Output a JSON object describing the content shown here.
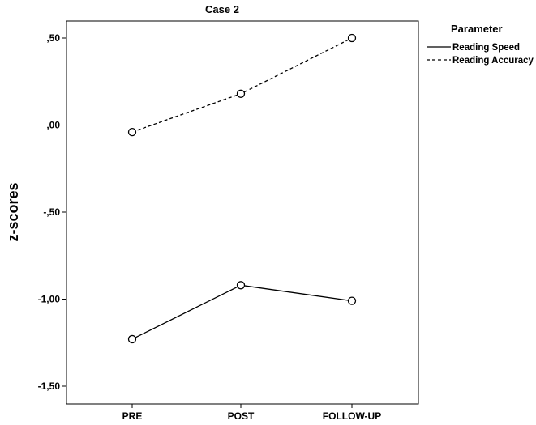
{
  "chart_data": {
    "type": "line",
    "title": "Case 2",
    "ylabel": "z-scores",
    "xlabel": "",
    "categories": [
      "PRE",
      "POST",
      "FOLLOW-UP"
    ],
    "ylim": [
      -1.6,
      0.6
    ],
    "yticks": [
      0.5,
      0.0,
      -0.5,
      -1.0,
      -1.5
    ],
    "ytick_labels": [
      ",50",
      ",00",
      "-,50",
      "-1,00",
      "-1,50"
    ],
    "grid": false,
    "legend": {
      "title": "Parameter",
      "placement": "right"
    },
    "series": [
      {
        "name": "Reading Speed",
        "style": "solid",
        "values": [
          -1.23,
          -0.92,
          -1.01
        ]
      },
      {
        "name": "Reading Accuracy",
        "style": "dashed",
        "values": [
          -0.04,
          0.18,
          0.5
        ]
      }
    ]
  }
}
